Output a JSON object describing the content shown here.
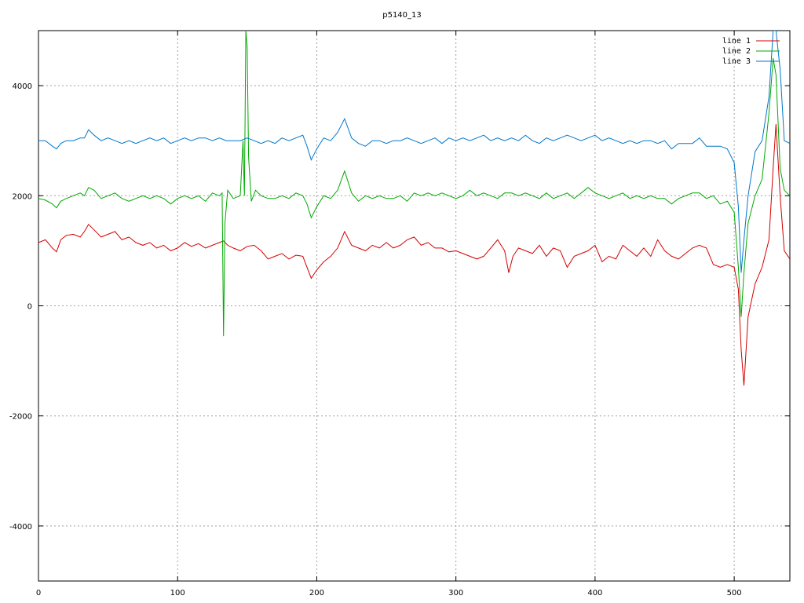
{
  "chart_data": {
    "type": "line",
    "title": "p5140_13",
    "xlabel": "",
    "ylabel": "",
    "xlim": [
      0,
      540
    ],
    "ylim": [
      -5000,
      5000
    ],
    "x_ticks": [
      0,
      100,
      200,
      300,
      400,
      500
    ],
    "y_ticks": [
      -4000,
      -2000,
      0,
      2000,
      4000
    ],
    "x_tick_labels": [
      "0",
      "100",
      "200",
      "300",
      "400",
      "500"
    ],
    "y_tick_labels": [
      "-4000",
      "-2000",
      "0",
      "2000",
      "4000"
    ],
    "grid": true,
    "legend_position": "top-right",
    "series": [
      {
        "name": "line 1",
        "color": "#d40000",
        "x": [
          0,
          5,
          10,
          13,
          16,
          20,
          25,
          30,
          33,
          36,
          40,
          45,
          50,
          55,
          60,
          65,
          70,
          75,
          80,
          85,
          90,
          95,
          100,
          105,
          110,
          115,
          120,
          125,
          130,
          133,
          136,
          140,
          145,
          150,
          155,
          160,
          165,
          170,
          175,
          180,
          185,
          190,
          193,
          196,
          200,
          205,
          210,
          215,
          220,
          225,
          230,
          235,
          240,
          245,
          250,
          255,
          260,
          265,
          270,
          275,
          280,
          285,
          290,
          295,
          300,
          305,
          310,
          315,
          320,
          325,
          330,
          335,
          338,
          341,
          345,
          350,
          355,
          360,
          365,
          370,
          375,
          380,
          385,
          390,
          395,
          400,
          405,
          410,
          415,
          420,
          425,
          430,
          435,
          440,
          445,
          450,
          455,
          460,
          465,
          470,
          475,
          480,
          485,
          490,
          495,
          500,
          503,
          505,
          507,
          510,
          515,
          520,
          525,
          528,
          530,
          533,
          536,
          540
        ],
        "values": [
          1150,
          1200,
          1050,
          980,
          1200,
          1280,
          1300,
          1250,
          1350,
          1480,
          1380,
          1250,
          1300,
          1350,
          1200,
          1250,
          1150,
          1100,
          1150,
          1050,
          1100,
          1000,
          1050,
          1150,
          1080,
          1130,
          1050,
          1100,
          1150,
          1180,
          1100,
          1050,
          1000,
          1080,
          1100,
          1000,
          850,
          900,
          950,
          850,
          920,
          900,
          700,
          500,
          650,
          800,
          900,
          1050,
          1350,
          1100,
          1050,
          1000,
          1100,
          1050,
          1150,
          1050,
          1100,
          1200,
          1250,
          1100,
          1150,
          1050,
          1050,
          980,
          1000,
          950,
          900,
          850,
          900,
          1050,
          1200,
          1000,
          600,
          900,
          1050,
          1000,
          950,
          1100,
          900,
          1050,
          1000,
          700,
          900,
          950,
          1000,
          1100,
          800,
          900,
          850,
          1100,
          1000,
          900,
          1050,
          900,
          1200,
          1000,
          900,
          850,
          950,
          1050,
          1100,
          1050,
          750,
          700,
          750,
          700,
          300,
          -800,
          -1450,
          -200,
          400,
          700,
          1200,
          2500,
          3300,
          2000,
          1000,
          850
        ]
      },
      {
        "name": "line 2",
        "color": "#00aa00",
        "x": [
          0,
          5,
          10,
          13,
          16,
          20,
          25,
          30,
          33,
          36,
          40,
          45,
          50,
          55,
          60,
          65,
          70,
          75,
          80,
          85,
          90,
          95,
          100,
          105,
          110,
          115,
          120,
          125,
          130,
          132,
          133,
          134,
          136,
          140,
          145,
          147,
          148,
          149,
          150,
          151,
          153,
          156,
          160,
          165,
          170,
          175,
          180,
          185,
          190,
          193,
          196,
          200,
          205,
          210,
          215,
          220,
          225,
          230,
          235,
          240,
          245,
          250,
          255,
          260,
          265,
          270,
          275,
          280,
          285,
          290,
          295,
          300,
          305,
          310,
          315,
          320,
          325,
          330,
          335,
          340,
          345,
          350,
          355,
          360,
          365,
          370,
          375,
          380,
          385,
          390,
          395,
          400,
          405,
          410,
          415,
          420,
          425,
          430,
          435,
          440,
          445,
          450,
          455,
          460,
          465,
          470,
          475,
          480,
          485,
          490,
          495,
          500,
          503,
          505,
          507,
          510,
          515,
          520,
          525,
          528,
          530,
          533,
          536,
          540
        ],
        "values": [
          1950,
          1920,
          1850,
          1780,
          1900,
          1950,
          2000,
          2050,
          2000,
          2150,
          2100,
          1950,
          2000,
          2050,
          1950,
          1900,
          1950,
          2000,
          1950,
          2000,
          1950,
          1850,
          1950,
          2000,
          1950,
          2000,
          1900,
          2050,
          2000,
          2050,
          -550,
          1500,
          2100,
          1950,
          2000,
          3000,
          2000,
          5000,
          4700,
          2700,
          1900,
          2100,
          2000,
          1950,
          1950,
          2000,
          1950,
          2050,
          2000,
          1850,
          1600,
          1800,
          2000,
          1950,
          2100,
          2450,
          2050,
          1900,
          2000,
          1950,
          2000,
          1950,
          1950,
          2000,
          1900,
          2050,
          2000,
          2050,
          2000,
          2050,
          2000,
          1950,
          2000,
          2100,
          2000,
          2050,
          2000,
          1950,
          2050,
          2050,
          2000,
          2050,
          2000,
          1950,
          2050,
          1950,
          2000,
          2050,
          1950,
          2050,
          2150,
          2050,
          2000,
          1950,
          2000,
          2050,
          1950,
          2000,
          1950,
          2000,
          1950,
          1950,
          1850,
          1950,
          2000,
          2050,
          2050,
          1950,
          2000,
          1850,
          1900,
          1700,
          700,
          -200,
          600,
          1500,
          2000,
          2300,
          3500,
          4500,
          4200,
          2500,
          2100,
          2000
        ]
      },
      {
        "name": "line 3",
        "color": "#0077cc",
        "x": [
          0,
          5,
          10,
          13,
          16,
          20,
          25,
          30,
          33,
          36,
          40,
          45,
          50,
          55,
          60,
          65,
          70,
          75,
          80,
          85,
          90,
          95,
          100,
          105,
          110,
          115,
          120,
          125,
          130,
          135,
          140,
          145,
          150,
          155,
          160,
          165,
          170,
          175,
          180,
          185,
          190,
          193,
          196,
          200,
          205,
          210,
          215,
          220,
          225,
          230,
          235,
          240,
          245,
          250,
          255,
          260,
          265,
          270,
          275,
          280,
          285,
          290,
          295,
          300,
          305,
          310,
          315,
          320,
          325,
          330,
          335,
          340,
          345,
          350,
          355,
          360,
          365,
          370,
          375,
          380,
          385,
          390,
          395,
          400,
          405,
          410,
          415,
          420,
          425,
          430,
          435,
          440,
          445,
          450,
          455,
          460,
          465,
          470,
          475,
          480,
          485,
          490,
          495,
          500,
          503,
          505,
          507,
          510,
          515,
          520,
          525,
          528,
          530,
          533,
          536,
          540
        ],
        "values": [
          3000,
          3000,
          2900,
          2850,
          2950,
          3000,
          3000,
          3050,
          3050,
          3200,
          3100,
          3000,
          3050,
          3000,
          2950,
          3000,
          2950,
          3000,
          3050,
          3000,
          3050,
          2950,
          3000,
          3050,
          3000,
          3050,
          3050,
          3000,
          3050,
          3000,
          3000,
          3000,
          3050,
          3000,
          2950,
          3000,
          2950,
          3050,
          3000,
          3050,
          3100,
          2900,
          2650,
          2850,
          3050,
          3000,
          3150,
          3400,
          3050,
          2950,
          2900,
          3000,
          3000,
          2950,
          3000,
          3000,
          3050,
          3000,
          2950,
          3000,
          3050,
          2950,
          3050,
          3000,
          3050,
          3000,
          3050,
          3100,
          3000,
          3050,
          3000,
          3050,
          3000,
          3100,
          3000,
          2950,
          3050,
          3000,
          3050,
          3100,
          3050,
          3000,
          3050,
          3100,
          3000,
          3050,
          3000,
          2950,
          3000,
          2950,
          3000,
          3000,
          2950,
          3000,
          2850,
          2950,
          2950,
          2950,
          3050,
          2900,
          2900,
          2900,
          2850,
          2600,
          1800,
          600,
          1200,
          2000,
          2800,
          3000,
          3800,
          5000,
          5000,
          4300,
          3000,
          2950
        ]
      }
    ]
  }
}
